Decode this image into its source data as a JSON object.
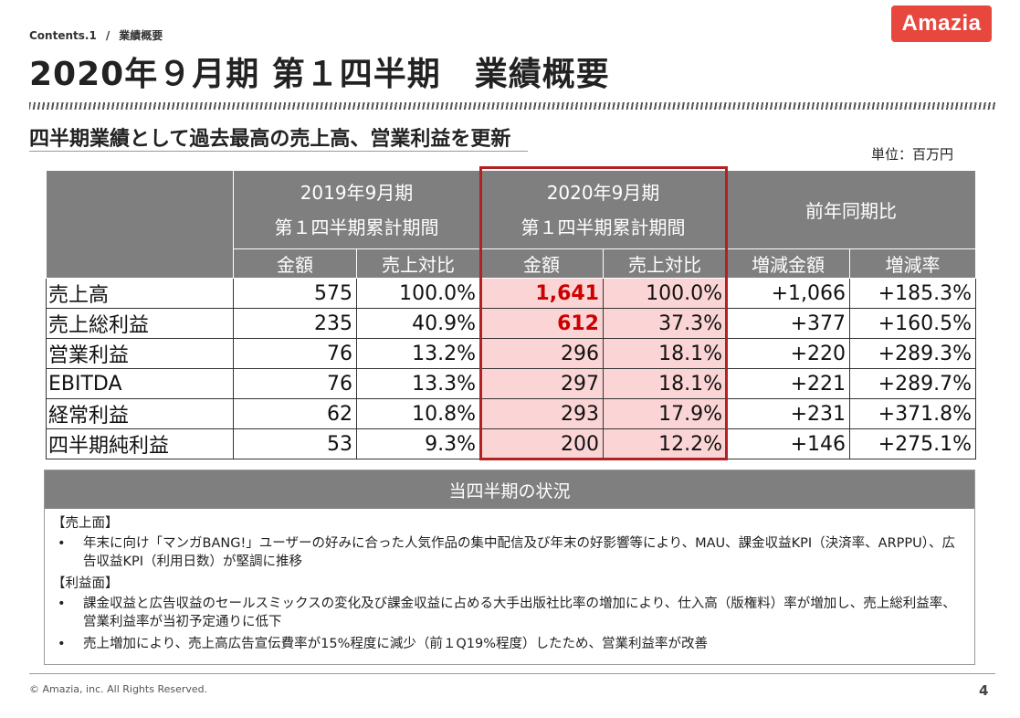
{
  "header": {
    "breadcrumb_section": "Contents.1",
    "breadcrumb_sep": "/",
    "breadcrumb_topic": "業績概要",
    "logo_text": "Amazia",
    "title": "2020年９月期 第１四半期　業績概要",
    "subtitle": "四半期業績として過去最高の売上高、営業利益を更新",
    "unit": "単位：百万円"
  },
  "table": {
    "period_prev": {
      "line1": "2019年9月期",
      "line2": "第１四半期累計期間"
    },
    "period_curr": {
      "line1": "2020年9月期",
      "line2": "第１四半期累計期間"
    },
    "yoy_header": "前年同期比",
    "sub_headers": [
      "金額",
      "売上対比",
      "金額",
      "売上対比",
      "増減金額",
      "増減率"
    ],
    "rows": [
      {
        "label": "売上高",
        "prev_amount": "575",
        "prev_ratio": "100.0%",
        "curr_amount": "1,641",
        "curr_ratio": "100.0%",
        "diff": "+1,066",
        "rate": "+185.3%"
      },
      {
        "label": "売上総利益",
        "prev_amount": "235",
        "prev_ratio": "40.9%",
        "curr_amount": "612",
        "curr_ratio": "37.3%",
        "diff": "+377",
        "rate": "+160.5%"
      },
      {
        "label": "営業利益",
        "prev_amount": "76",
        "prev_ratio": "13.2%",
        "curr_amount": "296",
        "curr_ratio": "18.1%",
        "diff": "+220",
        "rate": "+289.3%"
      },
      {
        "label": "EBITDA",
        "prev_amount": "76",
        "prev_ratio": "13.3%",
        "curr_amount": "297",
        "curr_ratio": "18.1%",
        "diff": "+221",
        "rate": "+289.7%"
      },
      {
        "label": "経常利益",
        "prev_amount": "62",
        "prev_ratio": "10.8%",
        "curr_amount": "293",
        "curr_ratio": "17.9%",
        "diff": "+231",
        "rate": "+371.8%"
      },
      {
        "label": "四半期純利益",
        "prev_amount": "53",
        "prev_ratio": "9.3%",
        "curr_amount": "200",
        "curr_ratio": "12.2%",
        "diff": "+146",
        "rate": "+275.1%"
      }
    ]
  },
  "status": {
    "heading": "当四半期の状況",
    "sales_label": "【売上面】",
    "sales_bullets": [
      "年末に向け「マンガBANG!」ユーザーの好みに合った人気作品の集中配信及び年末の好影響等により、MAU、課金収益KPI（決済率、ARPPU）、広告収益KPI（利用日数）が堅調に推移"
    ],
    "profit_label": "【利益面】",
    "profit_bullets": [
      "課金収益と広告収益のセールスミックスの変化及び課金収益に占める大手出版社比率の増加により、仕入高（版権料）率が増加し、売上総利益率、営業利益率が当初予定通りに低下",
      "売上増加により、売上高広告宣伝費率が15%程度に減少（前１Q19%程度）したため、営業利益率が改善"
    ],
    "bullet_char": "•"
  },
  "footer": {
    "copyright": "© Amazia, inc. All Rights Reserved.",
    "page_number": "4"
  },
  "colors": {
    "brand_red": "#e8473e",
    "header_gray": "#7f7f7f",
    "highlight_fill": "#fbd5d5",
    "highlight_border": "#b22222",
    "emphasis_red": "#cc0000"
  }
}
